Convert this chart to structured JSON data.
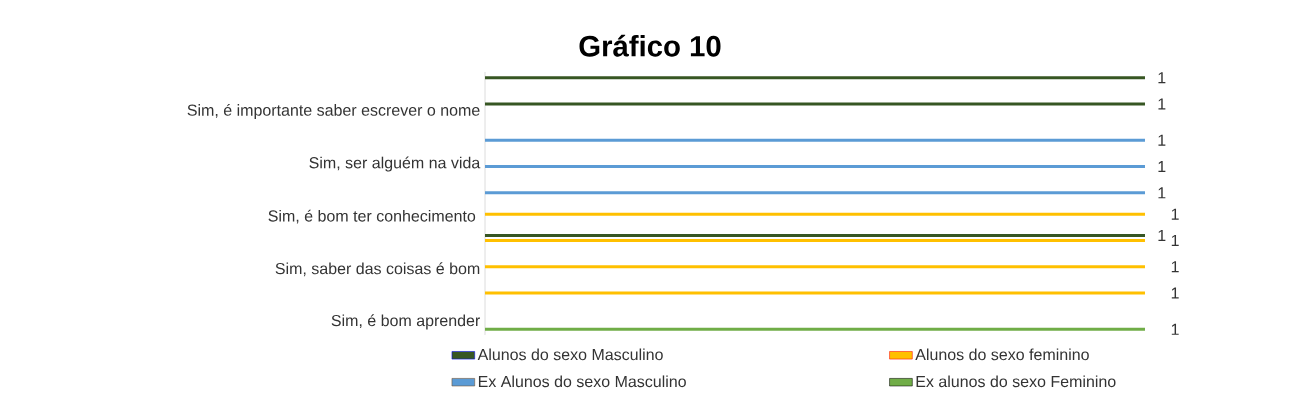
{
  "chart_data": {
    "type": "bar",
    "orientation": "horizontal",
    "title": "Gráfico 10",
    "categories": [
      null,
      "Sim, é importante saber escrever o nome",
      null,
      "Sim, ser alguém na vida",
      null,
      "Sim, é bom ter conhecimento ",
      null,
      "Sim, saber das coisas é bom",
      null,
      "Sim, é bom aprender"
    ],
    "series": [
      {
        "name": "Alunos do sexo Masculino",
        "color": "#375623",
        "values": [
          1,
          1,
          null,
          null,
          null,
          null,
          1,
          null,
          null,
          null
        ]
      },
      {
        "name": "Alunos do sexo feminino",
        "color": "#ffc000",
        "values": [
          null,
          null,
          null,
          null,
          null,
          1,
          1,
          1,
          1,
          null
        ]
      },
      {
        "name": "Ex Alunos do sexo Masculino",
        "color": "#5b9bd5",
        "values": [
          null,
          null,
          1,
          1,
          1,
          null,
          null,
          null,
          null,
          null
        ]
      },
      {
        "name": "Ex alunos do sexo Feminino",
        "color": "#70ad47",
        "values": [
          null,
          null,
          null,
          null,
          null,
          null,
          null,
          null,
          null,
          1
        ]
      }
    ],
    "tick_labels": "y",
    "data_labels": true,
    "legend": "bottom",
    "grid": false
  }
}
